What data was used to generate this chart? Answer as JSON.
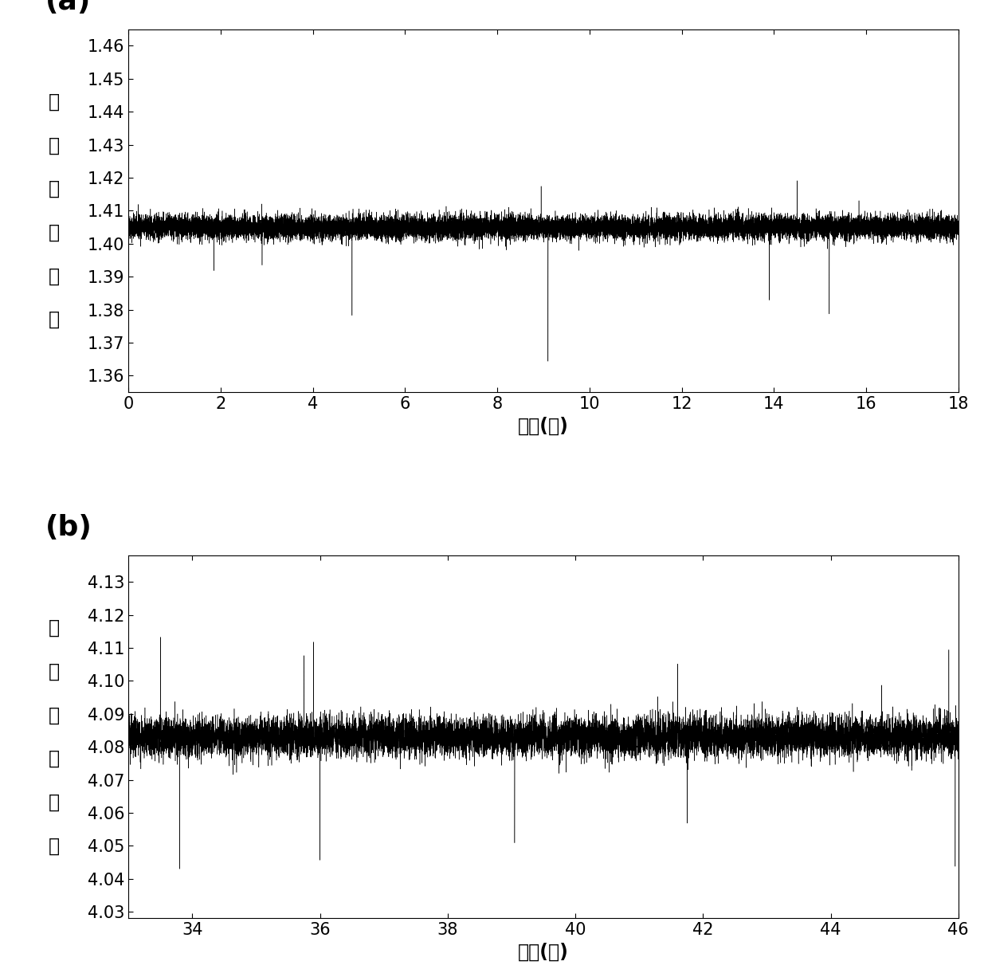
{
  "panel_a": {
    "label": "(a)",
    "baseline": 1.405,
    "noise_std": 0.0018,
    "ylim": [
      1.355,
      1.465
    ],
    "yticks": [
      1.36,
      1.37,
      1.38,
      1.39,
      1.4,
      1.41,
      1.42,
      1.43,
      1.44,
      1.45,
      1.46
    ],
    "xlim": [
      0,
      18
    ],
    "xticks": [
      0,
      2,
      4,
      6,
      8,
      10,
      12,
      14,
      16,
      18
    ],
    "xlabel": "时间(秒)",
    "ylabel_chars": [
      "振",
      "幅",
      "（",
      "毫",
      "伏",
      "）"
    ],
    "n_points": 18000,
    "spikes": [
      {
        "t": 1.85,
        "amp": -0.012
      },
      {
        "t": 2.9,
        "amp": -0.012
      },
      {
        "t": 4.85,
        "amp": -0.022
      },
      {
        "t": 7.2,
        "amp": 0.005
      },
      {
        "t": 8.95,
        "amp": 0.012
      },
      {
        "t": 9.1,
        "amp": -0.04
      },
      {
        "t": 13.9,
        "amp": -0.022
      },
      {
        "t": 14.5,
        "amp": 0.012
      },
      {
        "t": 15.2,
        "amp": -0.028
      },
      {
        "t": 17.85,
        "amp": 0.005
      }
    ]
  },
  "panel_b": {
    "label": "(b)",
    "baseline": 4.083,
    "noise_std": 0.003,
    "ylim": [
      4.028,
      4.138
    ],
    "yticks": [
      4.03,
      4.04,
      4.05,
      4.06,
      4.07,
      4.08,
      4.09,
      4.1,
      4.11,
      4.12,
      4.13
    ],
    "xlim": [
      33,
      46
    ],
    "xticks": [
      34,
      36,
      38,
      40,
      42,
      44,
      46
    ],
    "xlabel": "时间(秒)",
    "ylabel_chars": [
      "振",
      "幅",
      "（",
      "毫",
      "伏",
      "）"
    ],
    "n_points": 13000,
    "spikes": [
      {
        "t": 33.5,
        "amp": 0.028
      },
      {
        "t": 33.8,
        "amp": -0.04
      },
      {
        "t": 35.75,
        "amp": 0.028
      },
      {
        "t": 35.9,
        "amp": 0.028
      },
      {
        "t": 36.0,
        "amp": -0.036
      },
      {
        "t": 38.95,
        "amp": 0.01
      },
      {
        "t": 39.05,
        "amp": -0.036
      },
      {
        "t": 41.6,
        "amp": 0.02
      },
      {
        "t": 41.75,
        "amp": -0.03
      },
      {
        "t": 44.8,
        "amp": 0.02
      },
      {
        "t": 45.85,
        "amp": 0.02
      },
      {
        "t": 45.95,
        "amp": -0.03
      }
    ]
  },
  "line_color": "#000000",
  "line_width": 0.35,
  "background_color": "#ffffff",
  "label_fontsize": 26,
  "tick_fontsize": 15,
  "axis_label_fontsize": 17,
  "ylabel_fontsize": 17,
  "seed_a": 42,
  "seed_b": 123
}
